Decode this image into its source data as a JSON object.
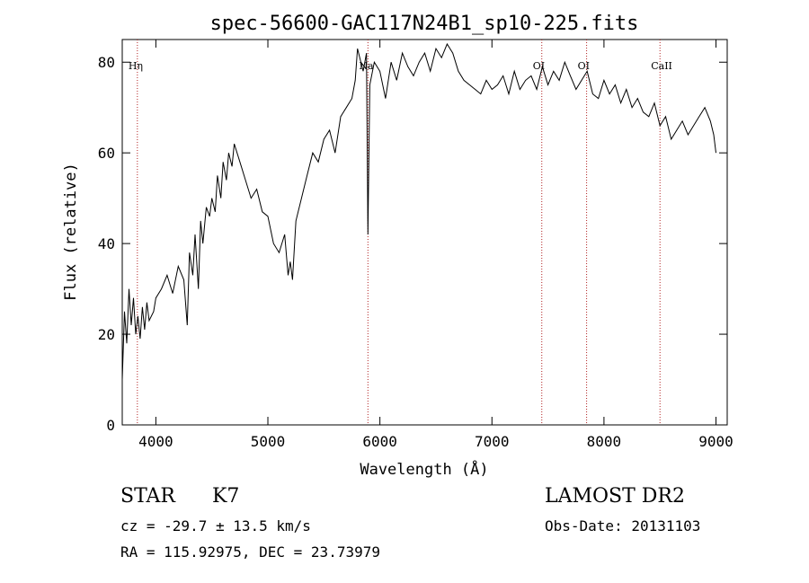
{
  "chart_data": {
    "type": "line",
    "title": "spec-56600-GAC117N24B1_sp10-225.fits",
    "xlabel": "Wavelength (Å)",
    "ylabel": "Flux (relative)",
    "xlim": [
      3700,
      9100
    ],
    "ylim": [
      0,
      85
    ],
    "x_ticks": [
      4000,
      5000,
      6000,
      7000,
      8000,
      9000
    ],
    "y_ticks": [
      0,
      20,
      40,
      60,
      80
    ],
    "grid": false,
    "line_color": "#000000",
    "marker_color": "#b22222",
    "lines": [
      {
        "name": "Hη",
        "wavelength": 3835
      },
      {
        "name": "Na",
        "wavelength": 5893
      },
      {
        "name": "OI",
        "wavelength": 7445
      },
      {
        "name": "OI",
        "wavelength": 7845
      },
      {
        "name": "CaII",
        "wavelength": 8500
      }
    ],
    "series": [
      {
        "x": [
          3700,
          3720,
          3740,
          3760,
          3780,
          3800,
          3820,
          3840,
          3860,
          3880,
          3900,
          3920,
          3940,
          3960,
          3980,
          4000,
          4050,
          4100,
          4150,
          4200,
          4250,
          4280,
          4300,
          4330,
          4350,
          4380,
          4400,
          4420,
          4450,
          4480,
          4500,
          4530,
          4550,
          4580,
          4600,
          4630,
          4650,
          4680,
          4700,
          4750,
          4800,
          4850,
          4900,
          4950,
          5000,
          5050,
          5100,
          5150,
          5180,
          5200,
          5220,
          5250,
          5300,
          5350,
          5400,
          5450,
          5500,
          5550,
          5600,
          5650,
          5700,
          5750,
          5780,
          5800,
          5850,
          5880,
          5893,
          5910,
          5950,
          6000,
          6050,
          6100,
          6150,
          6200,
          6250,
          6300,
          6350,
          6400,
          6450,
          6500,
          6550,
          6600,
          6650,
          6700,
          6750,
          6800,
          6850,
          6900,
          6950,
          7000,
          7050,
          7100,
          7150,
          7200,
          7250,
          7300,
          7350,
          7400,
          7450,
          7500,
          7550,
          7600,
          7650,
          7700,
          7750,
          7800,
          7850,
          7900,
          7950,
          8000,
          8050,
          8100,
          8150,
          8200,
          8250,
          8300,
          8350,
          8400,
          8450,
          8500,
          8550,
          8600,
          8650,
          8700,
          8750,
          8800,
          8850,
          8900,
          8950,
          8980,
          9000
        ],
        "values": [
          10,
          25,
          18,
          30,
          22,
          28,
          20,
          24,
          19,
          26,
          21,
          27,
          23,
          24,
          25,
          28,
          30,
          33,
          29,
          35,
          32,
          22,
          38,
          33,
          42,
          30,
          45,
          40,
          48,
          46,
          50,
          47,
          55,
          50,
          58,
          54,
          60,
          57,
          62,
          58,
          54,
          50,
          52,
          47,
          46,
          40,
          38,
          42,
          33,
          36,
          32,
          45,
          50,
          55,
          60,
          58,
          63,
          65,
          60,
          68,
          70,
          72,
          76,
          83,
          78,
          82,
          42,
          75,
          80,
          78,
          72,
          80,
          76,
          82,
          79,
          77,
          80,
          82,
          78,
          83,
          81,
          84,
          82,
          78,
          76,
          75,
          74,
          73,
          76,
          74,
          75,
          77,
          73,
          78,
          74,
          76,
          77,
          74,
          79,
          75,
          78,
          76,
          80,
          77,
          74,
          76,
          78,
          73,
          72,
          76,
          73,
          75,
          71,
          74,
          70,
          72,
          69,
          68,
          71,
          66,
          68,
          63,
          65,
          67,
          64,
          66,
          68,
          70,
          67,
          64,
          60
        ]
      }
    ]
  },
  "info": {
    "class_label": "STAR",
    "subclass": "K7",
    "survey": "LAMOST DR2",
    "cz": "cz = -29.7 ± 13.5 km/s",
    "obs_date": "Obs-Date: 20131103",
    "coords": "RA = 115.92975, DEC =  23.73979"
  }
}
